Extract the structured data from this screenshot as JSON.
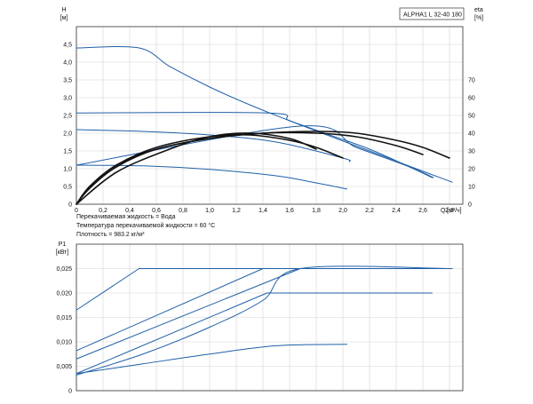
{
  "legend_box": {
    "label": "ALPHA1 L 32-40  180"
  },
  "notes": [
    "Перекачиваемая жидкость = Вода",
    "Температура перекачиваемой жидкости = 60 °C",
    "Плотность = 983.2 кг/м³"
  ],
  "colors": {
    "blue": "#1f5fa8",
    "black": "#111111",
    "grid": "#d6d6d6",
    "frame": "#333333"
  },
  "chart_data": [
    {
      "type": "line",
      "xlabel": "Q",
      "xunit": "[м³/ч]",
      "ylabel": "H",
      "yunit": "[м]",
      "y2label": "eta",
      "y2unit": "[%]",
      "xlim": [
        0,
        2.9
      ],
      "ylim": [
        0,
        5.0
      ],
      "y2lim": [
        0,
        100
      ],
      "xticks": [
        "0",
        "0,2",
        "0,4",
        "0,6",
        "0,8",
        "1,0",
        "1,2",
        "1,4",
        "1,6",
        "1,8",
        "2,0",
        "2,2",
        "2,4",
        "2,6",
        "2,8"
      ],
      "yticks": [
        "0",
        "0,5",
        "1,0",
        "1,5",
        "2,0",
        "2,5",
        "3,0",
        "3,5",
        "4,0",
        "4,5"
      ],
      "y2ticks": [
        "0",
        "10",
        "20",
        "30",
        "40",
        "50",
        "60",
        "70"
      ],
      "grid": true,
      "series": [
        {
          "color": "#1f5fa8",
          "axis": "y",
          "x": [
            0,
            0.47,
            0.7,
            1.0,
            1.3,
            1.6,
            1.9,
            2.2,
            2.5,
            2.65,
            2.82
          ],
          "y": [
            4.4,
            4.4,
            3.88,
            3.3,
            2.8,
            2.35,
            1.92,
            1.5,
            1.07,
            0.86,
            0.62
          ]
        },
        {
          "color": "#1f5fa8",
          "axis": "y",
          "x": [
            0,
            1.43,
            1.6,
            1.9,
            2.2,
            2.5,
            2.67
          ],
          "y": [
            2.57,
            2.57,
            2.35,
            1.95,
            1.55,
            1.05,
            0.75
          ]
        },
        {
          "color": "#1f5fa8",
          "axis": "y",
          "x": [
            0,
            0.5,
            1.0,
            1.5,
            2.0,
            2.05
          ],
          "y": [
            2.1,
            2.05,
            1.95,
            1.75,
            1.3,
            1.2
          ]
        },
        {
          "color": "#1f5fa8",
          "axis": "y",
          "x": [
            0,
            0.5,
            1.0,
            1.5,
            1.8,
            2.03
          ],
          "y": [
            1.1,
            1.08,
            0.98,
            0.8,
            0.6,
            0.43
          ]
        },
        {
          "color": "#1f5fa8",
          "axis": "y",
          "x": [
            0,
            1.68,
            2.1,
            2.5,
            2.68
          ],
          "y": [
            1.1,
            2.2,
            1.6,
            1.05,
            0.75
          ]
        },
        {
          "color": "#111111",
          "axis": "y2",
          "x": [
            0,
            0.1,
            0.3,
            0.6,
            1.0,
            1.4,
            1.8,
            2.1,
            2.4,
            2.6,
            2.8
          ],
          "y": [
            0,
            10,
            22,
            31,
            37,
            40,
            41,
            40,
            36,
            32,
            26
          ]
        },
        {
          "color": "#111111",
          "axis": "y2",
          "x": [
            0,
            0.1,
            0.3,
            0.6,
            1.0,
            1.4,
            1.8,
            2.1,
            2.4,
            2.6
          ],
          "y": [
            0,
            9,
            21,
            31,
            37,
            40,
            40,
            38,
            33,
            28
          ]
        },
        {
          "color": "#111111",
          "axis": "y2",
          "x": [
            0,
            0.1,
            0.3,
            0.6,
            1.0,
            1.3,
            1.6,
            1.8,
            2.0
          ],
          "y": [
            0,
            10,
            22,
            32,
            38,
            39,
            36,
            32,
            26
          ]
        },
        {
          "color": "#111111",
          "axis": "y2",
          "x": [
            0,
            0.3,
            0.7,
            1.0,
            1.3,
            1.6,
            1.8
          ],
          "y": [
            0,
            18,
            31,
            38,
            40,
            37,
            31
          ]
        }
      ]
    },
    {
      "type": "line",
      "ylabel": "P1",
      "yunit": "[кВт]",
      "xlim": [
        0,
        2.9
      ],
      "ylim": [
        0,
        0.03
      ],
      "yticks": [
        "0",
        "0,005",
        "0,010",
        "0,015",
        "0,020",
        "0,025"
      ],
      "grid": true,
      "series": [
        {
          "color": "#1f5fa8",
          "x": [
            0,
            0.47,
            2.82
          ],
          "y": [
            0.0165,
            0.025,
            0.025
          ]
        },
        {
          "color": "#1f5fa8",
          "x": [
            0,
            1.4,
            2.82
          ],
          "y": [
            0.0082,
            0.025,
            0.025
          ]
        },
        {
          "color": "#1f5fa8",
          "x": [
            0,
            1.68,
            2.82
          ],
          "y": [
            0.0065,
            0.025,
            0.025
          ]
        },
        {
          "color": "#1f5fa8",
          "x": [
            0,
            1.43,
            2.67
          ],
          "y": [
            0.0035,
            0.02,
            0.02
          ]
        },
        {
          "color": "#1f5fa8",
          "x": [
            0,
            0.5,
            1.0,
            1.5,
            2.03
          ],
          "y": [
            0.0035,
            0.0055,
            0.0075,
            0.0092,
            0.0095
          ]
        },
        {
          "color": "#1f5fa8",
          "x": [
            0,
            0.5,
            1.0,
            1.4,
            1.68,
            2.82
          ],
          "y": [
            0.0032,
            0.0075,
            0.013,
            0.0185,
            0.025,
            0.025
          ]
        }
      ]
    }
  ]
}
